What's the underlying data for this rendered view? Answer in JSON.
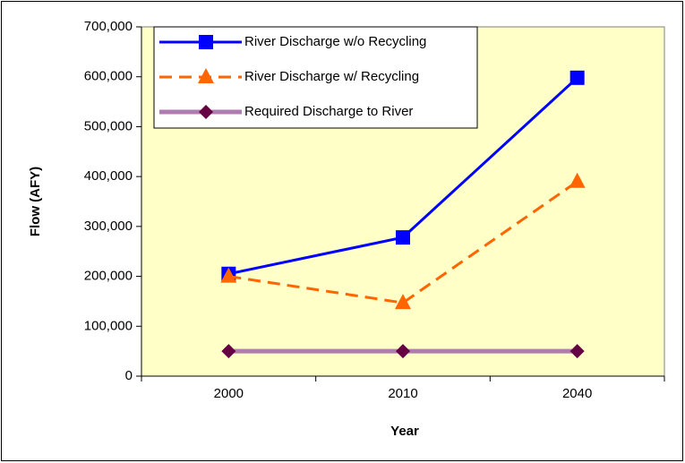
{
  "chart_data": {
    "type": "line",
    "categories": [
      "2000",
      "2010",
      "2040"
    ],
    "series": [
      {
        "name": "River Discharge w/o Recycling",
        "color": "#0000ff",
        "marker": "square",
        "dashed": false,
        "values": [
          205000,
          278000,
          598000
        ]
      },
      {
        "name": "River Discharge w/ Recycling",
        "color": "#ff6600",
        "marker": "triangle",
        "dashed": true,
        "values": [
          200000,
          147000,
          390000
        ]
      },
      {
        "name": "Required Discharge to River",
        "color": "#b07cb0",
        "marker": "diamond",
        "marker_color": "#660044",
        "dashed": false,
        "values": [
          50000,
          50000,
          50000
        ]
      }
    ],
    "x_label": "Year",
    "y_label": "Flow (AFY)",
    "ylim": [
      0,
      700000
    ],
    "yticks": [
      0,
      {
        "value": 100000,
        "label": "100,000"
      },
      {
        "value": 200000,
        "label": "200,000"
      },
      {
        "value": 300000,
        "label": "300,000"
      },
      {
        "value": 400000,
        "label": "400,000"
      },
      {
        "value": 500000,
        "label": "500,000"
      },
      {
        "value": 600000,
        "label": "600,000"
      },
      {
        "value": 700000,
        "label": "700,000"
      }
    ],
    "grid": false,
    "legend": "upper left",
    "plot_background": "#ffffc8"
  }
}
